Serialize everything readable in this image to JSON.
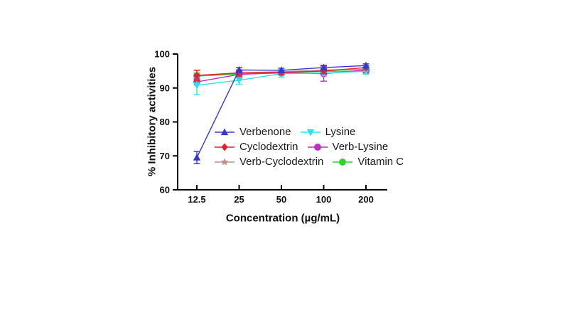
{
  "chart_data": {
    "type": "line",
    "title": "",
    "xlabel": "Concentration (µg/mL)",
    "ylabel": "% Inhibitory activities",
    "x_categories": [
      "12.5",
      "25",
      "50",
      "100",
      "200"
    ],
    "ylim": [
      60,
      100
    ],
    "yticks": [
      60,
      70,
      80,
      90,
      100
    ],
    "grid": false,
    "legend_position": "inside-bottom-right",
    "axis_color": "#000000",
    "background_color": "#ffffff",
    "error_bars": "symmetric, shown per point",
    "series": [
      {
        "name": "Verbenone",
        "marker": "triangle-up",
        "color": "#3538cf",
        "values": [
          69.5,
          95.3,
          95.2,
          96.0,
          96.6
        ],
        "errors": [
          1.8,
          0.7,
          0.6,
          0.7,
          0.5
        ]
      },
      {
        "name": "Lysine",
        "marker": "triangle-down",
        "color": "#2edeeb",
        "values": [
          90.8,
          92.3,
          94.2,
          94.4,
          94.9
        ],
        "errors": [
          2.8,
          1.2,
          1.0,
          0.8,
          0.7
        ]
      },
      {
        "name": "Cyclodextrin",
        "marker": "diamond",
        "color": "#e42327",
        "values": [
          93.7,
          94.4,
          94.6,
          95.0,
          96.0
        ],
        "errors": [
          1.5,
          0.9,
          0.6,
          0.7,
          0.6
        ]
      },
      {
        "name": "Verb-Lysine",
        "marker": "circle",
        "color": "#bf2fc4",
        "values": [
          91.8,
          94.0,
          94.5,
          94.2,
          95.3
        ],
        "errors": [
          0.9,
          1.0,
          0.6,
          2.2,
          0.8
        ]
      },
      {
        "name": "Verb-Cyclodextrin",
        "marker": "star",
        "color": "#bf9191",
        "values": [
          93.7,
          94.5,
          94.8,
          95.3,
          95.5
        ],
        "errors": [
          1.5,
          0.8,
          0.6,
          0.6,
          0.6
        ]
      },
      {
        "name": "Vitamin C",
        "marker": "circle",
        "color": "#2ed32e",
        "values": [
          93.5,
          94.1,
          94.4,
          94.9,
          95.0
        ],
        "errors": [
          0.9,
          0.8,
          0.6,
          0.6,
          0.9
        ]
      }
    ]
  }
}
